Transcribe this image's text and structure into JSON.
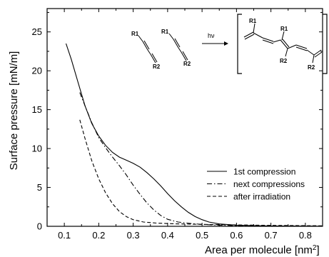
{
  "chart_data": {
    "type": "line",
    "xlabel": "Area per molecule [nm",
    "xlabel_sup": "2",
    "xlabel_end": "]",
    "ylabel": "Surface pressure [mN/m]",
    "xlim": [
      0.05,
      0.85
    ],
    "ylim": [
      0,
      28
    ],
    "x_ticks": [
      0.1,
      0.2,
      0.3,
      0.4,
      0.5,
      0.6,
      0.7,
      0.8
    ],
    "y_ticks": [
      0,
      5,
      10,
      15,
      20,
      25
    ],
    "x_tick_labels": [
      "0.1",
      "0.2",
      "0.3",
      "0.4",
      "0.5",
      "0.6",
      "0.7",
      "0.8"
    ],
    "y_tick_labels": [
      "0",
      "5",
      "10",
      "15",
      "20",
      "25"
    ],
    "grid": false,
    "legend_position": "lower-right",
    "series": [
      {
        "name": "1st compression",
        "style": "solid",
        "points": [
          [
            0.105,
            23.5
          ],
          [
            0.12,
            21.5
          ],
          [
            0.14,
            18.5
          ],
          [
            0.16,
            15.5
          ],
          [
            0.18,
            13.2
          ],
          [
            0.2,
            11.6
          ],
          [
            0.22,
            10.4
          ],
          [
            0.24,
            9.5
          ],
          [
            0.26,
            8.9
          ],
          [
            0.28,
            8.5
          ],
          [
            0.3,
            8.1
          ],
          [
            0.32,
            7.6
          ],
          [
            0.34,
            6.9
          ],
          [
            0.36,
            6.1
          ],
          [
            0.38,
            5.2
          ],
          [
            0.4,
            4.2
          ],
          [
            0.42,
            3.3
          ],
          [
            0.44,
            2.5
          ],
          [
            0.46,
            1.8
          ],
          [
            0.48,
            1.25
          ],
          [
            0.5,
            0.85
          ],
          [
            0.52,
            0.55
          ],
          [
            0.55,
            0.3
          ],
          [
            0.6,
            0.15
          ],
          [
            0.65,
            0.08
          ],
          [
            0.7,
            0.05
          ],
          [
            0.75,
            0.03
          ],
          [
            0.8,
            0.02
          ],
          [
            0.85,
            0.01
          ]
        ]
      },
      {
        "name": "next compressions",
        "style": "dashdot",
        "points": [
          [
            0.145,
            17.2
          ],
          [
            0.16,
            15.5
          ],
          [
            0.18,
            13.3
          ],
          [
            0.2,
            11.4
          ],
          [
            0.22,
            10.1
          ],
          [
            0.24,
            8.9
          ],
          [
            0.26,
            7.8
          ],
          [
            0.28,
            6.6
          ],
          [
            0.3,
            5.3
          ],
          [
            0.32,
            4.1
          ],
          [
            0.34,
            3.0
          ],
          [
            0.36,
            2.1
          ],
          [
            0.38,
            1.4
          ],
          [
            0.4,
            0.9
          ],
          [
            0.43,
            0.55
          ],
          [
            0.47,
            0.35
          ],
          [
            0.5,
            0.25
          ],
          [
            0.55,
            0.15
          ],
          [
            0.6,
            0.08
          ],
          [
            0.7,
            0.04
          ],
          [
            0.85,
            0.02
          ]
        ]
      },
      {
        "name": "after irradiation",
        "style": "dashed",
        "points": [
          [
            0.145,
            13.7
          ],
          [
            0.16,
            11.3
          ],
          [
            0.18,
            8.4
          ],
          [
            0.2,
            6.1
          ],
          [
            0.22,
            4.3
          ],
          [
            0.24,
            2.9
          ],
          [
            0.26,
            1.9
          ],
          [
            0.28,
            1.25
          ],
          [
            0.3,
            0.85
          ],
          [
            0.33,
            0.55
          ],
          [
            0.37,
            0.4
          ],
          [
            0.42,
            0.32
          ],
          [
            0.5,
            0.25
          ],
          [
            0.6,
            0.18
          ],
          [
            0.7,
            0.12
          ],
          [
            0.8,
            0.08
          ],
          [
            0.85,
            0.06
          ]
        ]
      }
    ]
  },
  "inset": {
    "reactant1": {
      "r1": "R1",
      "r2": "R2"
    },
    "reactant2": {
      "r1": "R1",
      "r2": "R2"
    },
    "reaction_label": "hν",
    "product": {
      "r1a": "R1",
      "r1b": "R1",
      "r2a": "R2",
      "r2b": "R2"
    }
  }
}
